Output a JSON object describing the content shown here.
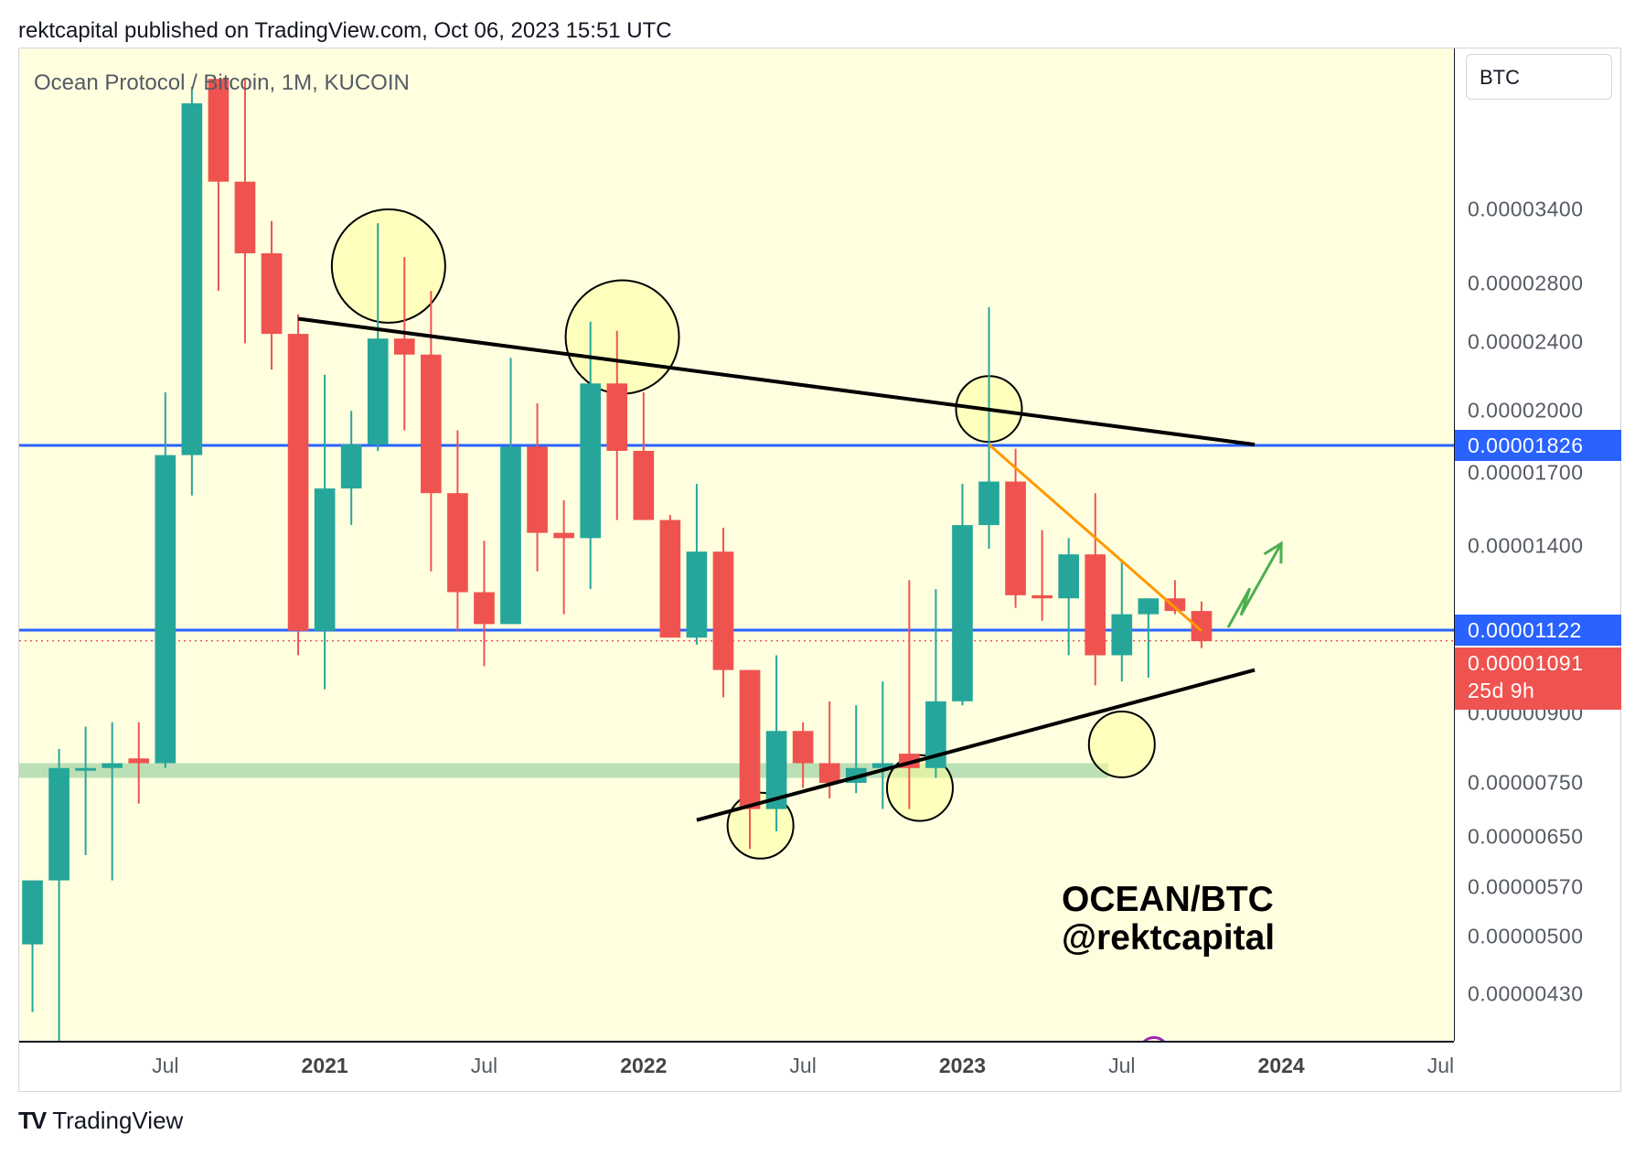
{
  "header": {
    "text": "rektcapital published on TradingView.com, Oct 06, 2023 15:51 UTC"
  },
  "legend": {
    "symbol": "Ocean Protocol / Bitcoin, 1M, KUCOIN"
  },
  "currency": "BTC",
  "annotation": {
    "line1": "OCEAN/BTC",
    "line2": "@rektcapital"
  },
  "footer": {
    "logo": "TV",
    "brand": "TradingView"
  },
  "colors": {
    "up": "#26a69a",
    "down": "#ef5350",
    "level": "#2962ff",
    "trend": "#000000",
    "orange": "#ff9800",
    "arrow": "#4caf50",
    "zone": "#a5d6a7",
    "circle_fill": "#ffff99"
  },
  "chart_data": {
    "type": "candlestick",
    "title": "Ocean Protocol / Bitcoin, 1M, KUCOIN",
    "scale": "log",
    "ylim": [
      3.8e-06,
      5.2e-05
    ],
    "y_ticks": [
      {
        "value": 3.4e-05,
        "label": "0.00003400"
      },
      {
        "value": 2.8e-05,
        "label": "0.00002800"
      },
      {
        "value": 2.4e-05,
        "label": "0.00002400"
      },
      {
        "value": 2e-05,
        "label": "0.00002000"
      },
      {
        "value": 1.7e-05,
        "label": "0.00001700"
      },
      {
        "value": 1.4e-05,
        "label": "0.00001400"
      },
      {
        "value": 9e-06,
        "label": "0.00000900"
      },
      {
        "value": 7.5e-06,
        "label": "0.00000750"
      },
      {
        "value": 6.5e-06,
        "label": "0.00000650"
      },
      {
        "value": 5.7e-06,
        "label": "0.00000570"
      },
      {
        "value": 5e-06,
        "label": "0.00000500"
      },
      {
        "value": 4.3e-06,
        "label": "0.00000430"
      }
    ],
    "x_ticks": [
      {
        "label": "Jul",
        "index": 5,
        "year": false
      },
      {
        "label": "2021",
        "index": 11,
        "year": true
      },
      {
        "label": "Jul",
        "index": 17,
        "year": false
      },
      {
        "label": "2022",
        "index": 23,
        "year": true
      },
      {
        "label": "Jul",
        "index": 29,
        "year": false
      },
      {
        "label": "2023",
        "index": 35,
        "year": true
      },
      {
        "label": "Jul",
        "index": 41,
        "year": false
      },
      {
        "label": "2024",
        "index": 47,
        "year": true
      },
      {
        "label": "Jul",
        "index": 53,
        "year": false
      }
    ],
    "index_range": [
      -0.5,
      53.5
    ],
    "price_labels": [
      {
        "value": 1.826e-05,
        "label": "0.00001826",
        "color": "#2962ff"
      },
      {
        "value": 1.122e-05,
        "label": "0.00001122",
        "color": "#2962ff"
      },
      {
        "value": 1.091e-05,
        "label": "0.00001091",
        "sub": "25d 9h",
        "color": "#ef5350"
      }
    ],
    "levels": [
      1.826e-05,
      1.122e-05
    ],
    "current_price": 1.091e-05,
    "candles": [
      {
        "i": 0,
        "o": 4.9e-06,
        "h": 5.8e-06,
        "l": 4.1e-06,
        "c": 5.8e-06
      },
      {
        "i": 1,
        "o": 5.8e-06,
        "h": 8.2e-06,
        "l": 3.6e-06,
        "c": 7.8e-06
      },
      {
        "i": 2,
        "o": 7.8e-06,
        "h": 8.7e-06,
        "l": 6.2e-06,
        "c": 7.8e-06
      },
      {
        "i": 3,
        "o": 7.8e-06,
        "h": 8.8e-06,
        "l": 5.8e-06,
        "c": 7.9e-06
      },
      {
        "i": 4,
        "o": 8e-06,
        "h": 8.8e-06,
        "l": 7.1e-06,
        "c": 7.9e-06
      },
      {
        "i": 5,
        "o": 7.9e-06,
        "h": 2.1e-05,
        "l": 7.8e-06,
        "c": 1.78e-05
      },
      {
        "i": 6,
        "o": 1.78e-05,
        "h": 4.7e-05,
        "l": 1.6e-05,
        "c": 4.5e-05
      },
      {
        "i": 7,
        "o": 4.8e-05,
        "h": 4.8e-05,
        "l": 2.744e-05,
        "c": 3.66e-05
      },
      {
        "i": 8,
        "o": 3.66e-05,
        "h": 4.8e-05,
        "l": 2.39e-05,
        "c": 3.03e-05
      },
      {
        "i": 9,
        "o": 3.03e-05,
        "h": 3.3e-05,
        "l": 2.23e-05,
        "c": 2.45e-05
      },
      {
        "i": 10,
        "o": 2.45e-05,
        "h": 2.58e-05,
        "l": 1.05e-05,
        "c": 1.12e-05
      },
      {
        "i": 11,
        "o": 1.12e-05,
        "h": 2.2e-05,
        "l": 9.6e-06,
        "c": 1.63e-05
      },
      {
        "i": 12,
        "o": 1.63e-05,
        "h": 2e-05,
        "l": 1.48e-05,
        "c": 1.83e-05
      },
      {
        "i": 13,
        "o": 1.83e-05,
        "h": 3.28e-05,
        "l": 1.8e-05,
        "c": 2.42e-05
      },
      {
        "i": 14,
        "o": 2.42e-05,
        "h": 3e-05,
        "l": 1.9e-05,
        "c": 2.32e-05
      },
      {
        "i": 15,
        "o": 2.32e-05,
        "h": 2.744e-05,
        "l": 1.31e-05,
        "c": 1.61e-05
      },
      {
        "i": 16,
        "o": 1.61e-05,
        "h": 1.9e-05,
        "l": 1.12e-05,
        "c": 1.24e-05
      },
      {
        "i": 17,
        "o": 1.24e-05,
        "h": 1.42e-05,
        "l": 1.02e-05,
        "c": 1.14e-05
      },
      {
        "i": 18,
        "o": 1.14e-05,
        "h": 2.3e-05,
        "l": 1.14e-05,
        "c": 1.82e-05
      },
      {
        "i": 19,
        "o": 1.82e-05,
        "h": 2.04e-05,
        "l": 1.31e-05,
        "c": 1.45e-05
      },
      {
        "i": 20,
        "o": 1.45e-05,
        "h": 1.58e-05,
        "l": 1.17e-05,
        "c": 1.43e-05
      },
      {
        "i": 21,
        "o": 1.43e-05,
        "h": 2.53e-05,
        "l": 1.25e-05,
        "c": 2.15e-05
      },
      {
        "i": 22,
        "o": 2.15e-05,
        "h": 2.47e-05,
        "l": 1.5e-05,
        "c": 1.8e-05
      },
      {
        "i": 23,
        "o": 1.8e-05,
        "h": 2.1e-05,
        "l": 1.5e-05,
        "c": 1.5e-05
      },
      {
        "i": 24,
        "o": 1.5e-05,
        "h": 1.52e-05,
        "l": 1.1e-05,
        "c": 1.1e-05
      },
      {
        "i": 25,
        "o": 1.1e-05,
        "h": 1.65e-05,
        "l": 1.08e-05,
        "c": 1.38e-05
      },
      {
        "i": 26,
        "o": 1.38e-05,
        "h": 1.47e-05,
        "l": 9.4e-06,
        "c": 1.01e-05
      },
      {
        "i": 27,
        "o": 1.01e-05,
        "h": 1.01e-05,
        "l": 6.3e-06,
        "c": 7e-06
      },
      {
        "i": 28,
        "o": 7e-06,
        "h": 1.05e-05,
        "l": 6.6e-06,
        "c": 8.6e-06
      },
      {
        "i": 29,
        "o": 8.6e-06,
        "h": 8.8e-06,
        "l": 7.4e-06,
        "c": 7.9e-06
      },
      {
        "i": 30,
        "o": 7.9e-06,
        "h": 9.3e-06,
        "l": 7.2e-06,
        "c": 7.5e-06
      },
      {
        "i": 31,
        "o": 7.5e-06,
        "h": 9.2e-06,
        "l": 7.3e-06,
        "c": 7.8e-06
      },
      {
        "i": 32,
        "o": 7.8e-06,
        "h": 9.8e-06,
        "l": 7e-06,
        "c": 7.9e-06
      },
      {
        "i": 33,
        "o": 8.1e-06,
        "h": 1.28e-05,
        "l": 7e-06,
        "c": 7.8e-06
      },
      {
        "i": 34,
        "o": 7.8e-06,
        "h": 1.25e-05,
        "l": 7.6e-06,
        "c": 9.3e-06
      },
      {
        "i": 35,
        "o": 9.3e-06,
        "h": 1.65e-05,
        "l": 9.2e-06,
        "c": 1.48e-05
      },
      {
        "i": 36,
        "o": 1.48e-05,
        "h": 2.63e-05,
        "l": 1.39e-05,
        "c": 1.66e-05
      },
      {
        "i": 37,
        "o": 1.66e-05,
        "h": 1.81e-05,
        "l": 1.19e-05,
        "c": 1.23e-05
      },
      {
        "i": 38,
        "o": 1.23e-05,
        "h": 1.46e-05,
        "l": 1.15e-05,
        "c": 1.22e-05
      },
      {
        "i": 39,
        "o": 1.22e-05,
        "h": 1.43e-05,
        "l": 1.05e-05,
        "c": 1.37e-05
      },
      {
        "i": 40,
        "o": 1.37e-05,
        "h": 1.61e-05,
        "l": 9.7e-06,
        "c": 1.05e-05
      },
      {
        "i": 41,
        "o": 1.05e-05,
        "h": 1.35e-05,
        "l": 9.8e-06,
        "c": 1.17e-05
      },
      {
        "i": 42,
        "o": 1.17e-05,
        "h": 1.22e-05,
        "l": 9.9e-06,
        "c": 1.22e-05
      },
      {
        "i": 43,
        "o": 1.22e-05,
        "h": 1.28e-05,
        "l": 1.17e-05,
        "c": 1.18e-05
      },
      {
        "i": 44,
        "o": 1.18e-05,
        "h": 1.21e-05,
        "l": 1.07e-05,
        "c": 1.09e-05
      }
    ],
    "trendlines": [
      {
        "name": "descending-resistance",
        "from": {
          "i": 10,
          "v": 2.55e-05
        },
        "to": {
          "i": 46,
          "v": 1.83e-05
        },
        "color": "#000000"
      },
      {
        "name": "ascending-support",
        "from": {
          "i": 25,
          "v": 6.8e-06
        },
        "to": {
          "i": 46,
          "v": 1.01e-05
        },
        "color": "#000000"
      },
      {
        "name": "orange-downtrend",
        "from": {
          "i": 36,
          "v": 1.83e-05
        },
        "to": {
          "i": 44,
          "v": 1.12e-05
        },
        "color": "#ff9800"
      }
    ],
    "circles": [
      {
        "i": 13.4,
        "v": 2.93e-05
      },
      {
        "i": 22.2,
        "v": 2.43e-05
      },
      {
        "i": 36,
        "v": 2.01e-05
      },
      {
        "i": 27.4,
        "v": 6.7e-06
      },
      {
        "i": 33.4,
        "v": 7.4e-06
      },
      {
        "i": 41,
        "v": 8.3e-06
      }
    ],
    "zone": {
      "i_from": -0.5,
      "i_to": 40.5,
      "v_low": 7.6e-06,
      "v_high": 7.9e-06
    },
    "projection": [
      {
        "i": 45,
        "v": 1.13e-05
      },
      {
        "i": 45.8,
        "v": 1.25e-05
      },
      {
        "i": 45.5,
        "v": 1.17e-05
      },
      {
        "i": 47,
        "v": 1.41e-05
      }
    ]
  }
}
